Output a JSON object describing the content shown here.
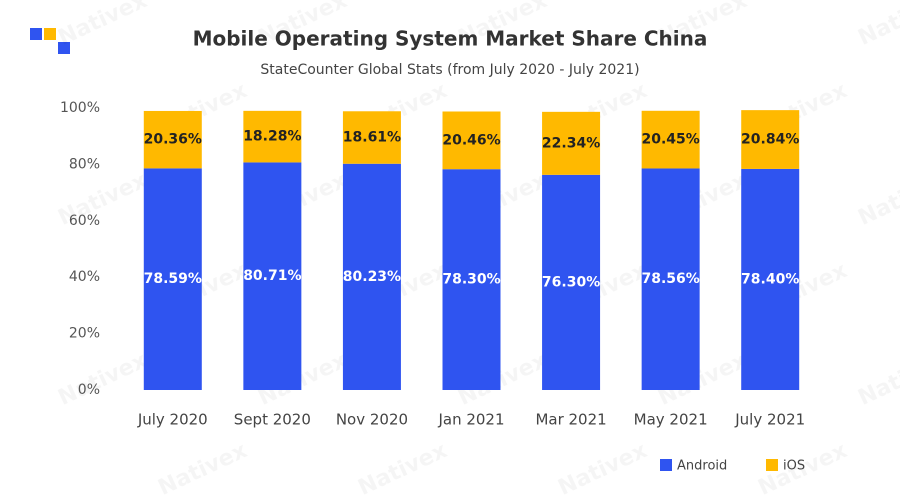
{
  "watermark": "Nativex",
  "chart_data": {
    "type": "stacked-bar",
    "title": "Mobile Operating System Market Share China",
    "subtitle": "StateCounter Global Stats (from July 2020 - July 2021)",
    "categories": [
      "July 2020",
      "Sept 2020",
      "Nov 2020",
      "Jan 2021",
      "Mar 2021",
      "May 2021",
      "July 2021"
    ],
    "series": [
      {
        "name": "Android",
        "color": "#2f54f0",
        "values": [
          78.59,
          80.71,
          80.23,
          78.3,
          76.3,
          78.56,
          78.4
        ],
        "value_labels": [
          "78.59%",
          "80.71%",
          "80.23%",
          "78.30%",
          "76.30%",
          "78.56%",
          "78.40%"
        ]
      },
      {
        "name": "iOS",
        "color": "#ffb900",
        "values": [
          20.36,
          18.28,
          18.61,
          20.46,
          22.34,
          20.45,
          20.84
        ],
        "value_labels": [
          "20.36%",
          "18.28%",
          "18.61%",
          "20.46%",
          "22.34%",
          "20.45%",
          "20.84%"
        ]
      }
    ],
    "ylim": [
      0,
      100
    ],
    "yticks": [
      {
        "value": 0,
        "label": "0%"
      },
      {
        "value": 20,
        "label": "20%"
      },
      {
        "value": 40,
        "label": "40%"
      },
      {
        "value": 60,
        "label": "60%"
      },
      {
        "value": 80,
        "label": "80%"
      },
      {
        "value": 100,
        "label": "100%"
      }
    ],
    "legend": "bottom-right"
  }
}
